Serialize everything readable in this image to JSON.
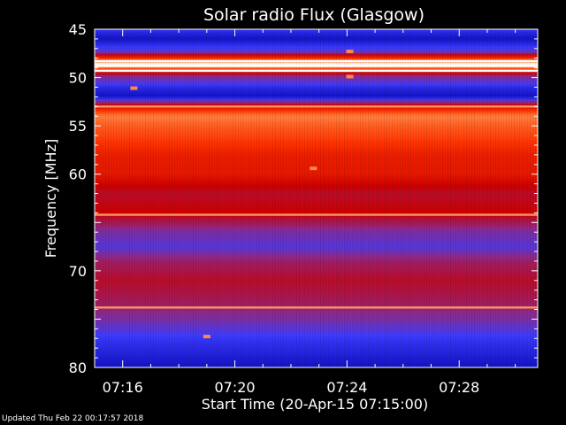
{
  "chart_data": {
    "type": "heatmap",
    "title": "Solar radio Flux (Glasgow)",
    "ylabel": "Frequency [MHz]",
    "xlabel": "Start Time (20-Apr-15 07:15:00)",
    "ylim": [
      45,
      80
    ],
    "y_inverted": true,
    "y_ticks": [
      45,
      50,
      55,
      60,
      65,
      70,
      75,
      80
    ],
    "y_tick_labels": [
      "45",
      "50",
      "55",
      "60",
      "",
      "70",
      "",
      "80"
    ],
    "x_start_time": "07:15:00",
    "x_range_minutes": [
      0,
      15.8
    ],
    "x_tick_minutes": [
      1,
      5,
      9,
      13
    ],
    "x_tick_labels": [
      "07:16",
      "07:20",
      "07:24",
      "07:28"
    ],
    "colormap": [
      "#0000aa",
      "#3c3cff",
      "#8c2a8c",
      "#cc0000",
      "#ff3300",
      "#ff8844",
      "#ffffff"
    ],
    "intensity_profile": [
      {
        "mhz": 45.0,
        "level": 0.15
      },
      {
        "mhz": 46.0,
        "level": 0.05
      },
      {
        "mhz": 47.2,
        "level": 0.2
      },
      {
        "mhz": 48.6,
        "level": 1.0
      },
      {
        "mhz": 49.8,
        "level": 0.35
      },
      {
        "mhz": 51.0,
        "level": 0.12
      },
      {
        "mhz": 52.0,
        "level": 0.05
      },
      {
        "mhz": 53.0,
        "level": 0.55
      },
      {
        "mhz": 54.0,
        "level": 0.82
      },
      {
        "mhz": 55.0,
        "level": 0.75
      },
      {
        "mhz": 56.5,
        "level": 0.68
      },
      {
        "mhz": 58.0,
        "level": 0.6
      },
      {
        "mhz": 60.0,
        "level": 0.58
      },
      {
        "mhz": 62.0,
        "level": 0.45
      },
      {
        "mhz": 64.0,
        "level": 0.5
      },
      {
        "mhz": 66.0,
        "level": 0.3
      },
      {
        "mhz": 67.5,
        "level": 0.22
      },
      {
        "mhz": 69.0,
        "level": 0.38
      },
      {
        "mhz": 71.0,
        "level": 0.45
      },
      {
        "mhz": 73.0,
        "level": 0.4
      },
      {
        "mhz": 75.0,
        "level": 0.3
      },
      {
        "mhz": 77.0,
        "level": 0.15
      },
      {
        "mhz": 80.0,
        "level": 0.05
      }
    ],
    "bright_lines_mhz": [
      48.3,
      48.8,
      49.3,
      53.0,
      64.2,
      73.8
    ],
    "events": [
      {
        "minute": 7.8,
        "mhz": 59.4
      },
      {
        "minute": 9.1,
        "mhz": 47.3
      },
      {
        "minute": 9.1,
        "mhz": 49.9
      },
      {
        "minute": 1.4,
        "mhz": 51.1
      },
      {
        "minute": 4.0,
        "mhz": 76.8
      }
    ]
  },
  "footer": {
    "updated": "Updated Thu Feb 22 00:17:57 2018"
  }
}
